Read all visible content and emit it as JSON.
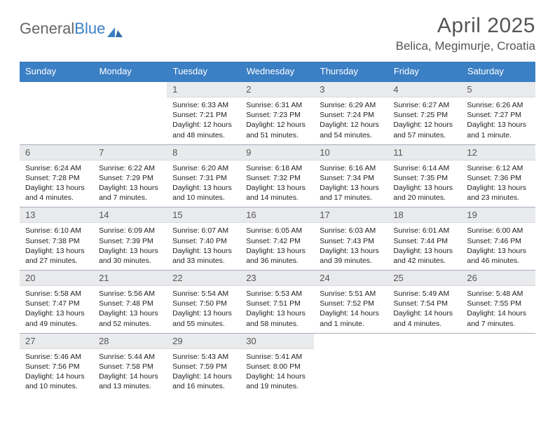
{
  "brand": {
    "part1": "General",
    "part2": "Blue"
  },
  "header": {
    "month_year": "April 2025",
    "location": "Belica, Megimurje, Croatia"
  },
  "colors": {
    "header_bg": "#3b7fc4",
    "header_text": "#ffffff",
    "daynum_bg": "#e9eaec",
    "daynum_text": "#555555",
    "body_text": "#222222",
    "title_text": "#555555",
    "row_border": "#aab"
  },
  "weekdays": [
    "Sunday",
    "Monday",
    "Tuesday",
    "Wednesday",
    "Thursday",
    "Friday",
    "Saturday"
  ],
  "weeks": [
    [
      null,
      null,
      {
        "day": "1",
        "sunrise": "Sunrise: 6:33 AM",
        "sunset": "Sunset: 7:21 PM",
        "daylight": "Daylight: 12 hours and 48 minutes."
      },
      {
        "day": "2",
        "sunrise": "Sunrise: 6:31 AM",
        "sunset": "Sunset: 7:23 PM",
        "daylight": "Daylight: 12 hours and 51 minutes."
      },
      {
        "day": "3",
        "sunrise": "Sunrise: 6:29 AM",
        "sunset": "Sunset: 7:24 PM",
        "daylight": "Daylight: 12 hours and 54 minutes."
      },
      {
        "day": "4",
        "sunrise": "Sunrise: 6:27 AM",
        "sunset": "Sunset: 7:25 PM",
        "daylight": "Daylight: 12 hours and 57 minutes."
      },
      {
        "day": "5",
        "sunrise": "Sunrise: 6:26 AM",
        "sunset": "Sunset: 7:27 PM",
        "daylight": "Daylight: 13 hours and 1 minute."
      }
    ],
    [
      {
        "day": "6",
        "sunrise": "Sunrise: 6:24 AM",
        "sunset": "Sunset: 7:28 PM",
        "daylight": "Daylight: 13 hours and 4 minutes."
      },
      {
        "day": "7",
        "sunrise": "Sunrise: 6:22 AM",
        "sunset": "Sunset: 7:29 PM",
        "daylight": "Daylight: 13 hours and 7 minutes."
      },
      {
        "day": "8",
        "sunrise": "Sunrise: 6:20 AM",
        "sunset": "Sunset: 7:31 PM",
        "daylight": "Daylight: 13 hours and 10 minutes."
      },
      {
        "day": "9",
        "sunrise": "Sunrise: 6:18 AM",
        "sunset": "Sunset: 7:32 PM",
        "daylight": "Daylight: 13 hours and 14 minutes."
      },
      {
        "day": "10",
        "sunrise": "Sunrise: 6:16 AM",
        "sunset": "Sunset: 7:34 PM",
        "daylight": "Daylight: 13 hours and 17 minutes."
      },
      {
        "day": "11",
        "sunrise": "Sunrise: 6:14 AM",
        "sunset": "Sunset: 7:35 PM",
        "daylight": "Daylight: 13 hours and 20 minutes."
      },
      {
        "day": "12",
        "sunrise": "Sunrise: 6:12 AM",
        "sunset": "Sunset: 7:36 PM",
        "daylight": "Daylight: 13 hours and 23 minutes."
      }
    ],
    [
      {
        "day": "13",
        "sunrise": "Sunrise: 6:10 AM",
        "sunset": "Sunset: 7:38 PM",
        "daylight": "Daylight: 13 hours and 27 minutes."
      },
      {
        "day": "14",
        "sunrise": "Sunrise: 6:09 AM",
        "sunset": "Sunset: 7:39 PM",
        "daylight": "Daylight: 13 hours and 30 minutes."
      },
      {
        "day": "15",
        "sunrise": "Sunrise: 6:07 AM",
        "sunset": "Sunset: 7:40 PM",
        "daylight": "Daylight: 13 hours and 33 minutes."
      },
      {
        "day": "16",
        "sunrise": "Sunrise: 6:05 AM",
        "sunset": "Sunset: 7:42 PM",
        "daylight": "Daylight: 13 hours and 36 minutes."
      },
      {
        "day": "17",
        "sunrise": "Sunrise: 6:03 AM",
        "sunset": "Sunset: 7:43 PM",
        "daylight": "Daylight: 13 hours and 39 minutes."
      },
      {
        "day": "18",
        "sunrise": "Sunrise: 6:01 AM",
        "sunset": "Sunset: 7:44 PM",
        "daylight": "Daylight: 13 hours and 42 minutes."
      },
      {
        "day": "19",
        "sunrise": "Sunrise: 6:00 AM",
        "sunset": "Sunset: 7:46 PM",
        "daylight": "Daylight: 13 hours and 46 minutes."
      }
    ],
    [
      {
        "day": "20",
        "sunrise": "Sunrise: 5:58 AM",
        "sunset": "Sunset: 7:47 PM",
        "daylight": "Daylight: 13 hours and 49 minutes."
      },
      {
        "day": "21",
        "sunrise": "Sunrise: 5:56 AM",
        "sunset": "Sunset: 7:48 PM",
        "daylight": "Daylight: 13 hours and 52 minutes."
      },
      {
        "day": "22",
        "sunrise": "Sunrise: 5:54 AM",
        "sunset": "Sunset: 7:50 PM",
        "daylight": "Daylight: 13 hours and 55 minutes."
      },
      {
        "day": "23",
        "sunrise": "Sunrise: 5:53 AM",
        "sunset": "Sunset: 7:51 PM",
        "daylight": "Daylight: 13 hours and 58 minutes."
      },
      {
        "day": "24",
        "sunrise": "Sunrise: 5:51 AM",
        "sunset": "Sunset: 7:52 PM",
        "daylight": "Daylight: 14 hours and 1 minute."
      },
      {
        "day": "25",
        "sunrise": "Sunrise: 5:49 AM",
        "sunset": "Sunset: 7:54 PM",
        "daylight": "Daylight: 14 hours and 4 minutes."
      },
      {
        "day": "26",
        "sunrise": "Sunrise: 5:48 AM",
        "sunset": "Sunset: 7:55 PM",
        "daylight": "Daylight: 14 hours and 7 minutes."
      }
    ],
    [
      {
        "day": "27",
        "sunrise": "Sunrise: 5:46 AM",
        "sunset": "Sunset: 7:56 PM",
        "daylight": "Daylight: 14 hours and 10 minutes."
      },
      {
        "day": "28",
        "sunrise": "Sunrise: 5:44 AM",
        "sunset": "Sunset: 7:58 PM",
        "daylight": "Daylight: 14 hours and 13 minutes."
      },
      {
        "day": "29",
        "sunrise": "Sunrise: 5:43 AM",
        "sunset": "Sunset: 7:59 PM",
        "daylight": "Daylight: 14 hours and 16 minutes."
      },
      {
        "day": "30",
        "sunrise": "Sunrise: 5:41 AM",
        "sunset": "Sunset: 8:00 PM",
        "daylight": "Daylight: 14 hours and 19 minutes."
      },
      null,
      null,
      null
    ]
  ]
}
